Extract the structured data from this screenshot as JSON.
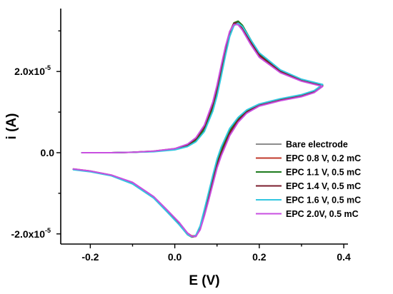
{
  "chart_data": {
    "type": "line",
    "xlabel": "E (V)",
    "ylabel": "i (A)",
    "xlim": [
      -0.27,
      0.41
    ],
    "ylim": [
      -2.25e-05,
      3.55e-05
    ],
    "x_ticks": [
      {
        "value": -0.2,
        "label": "-0.2"
      },
      {
        "value": 0.0,
        "label": "0.0"
      },
      {
        "value": 0.2,
        "label": "0.2"
      },
      {
        "value": 0.4,
        "label": "0.4"
      }
    ],
    "y_ticks": [
      {
        "value": -2e-05,
        "label": "-2.0x10",
        "exp": "-5"
      },
      {
        "value": 0.0,
        "label": "0.0",
        "exp": ""
      },
      {
        "value": 2e-05,
        "label": "2.0x10",
        "exp": "-5"
      }
    ],
    "legend_position": "bottom-right",
    "series": [
      {
        "name": "Bare electrode",
        "color": "#8c8c8c",
        "forward": [
          [
            -0.22,
            0.0
          ],
          [
            -0.15,
            0.0
          ],
          [
            -0.1,
            1e-07
          ],
          [
            -0.05,
            3e-07
          ],
          [
            0.0,
            8e-07
          ],
          [
            0.03,
            1.8e-06
          ],
          [
            0.05,
            3.2e-06
          ],
          [
            0.07,
            6e-06
          ],
          [
            0.09,
            1.15e-05
          ],
          [
            0.1,
            1.55e-05
          ],
          [
            0.11,
            2.05e-05
          ],
          [
            0.12,
            2.55e-05
          ],
          [
            0.13,
            2.95e-05
          ],
          [
            0.14,
            3.16e-05
          ],
          [
            0.15,
            3.18e-05
          ],
          [
            0.16,
            3.08e-05
          ],
          [
            0.18,
            2.72e-05
          ],
          [
            0.2,
            2.4e-05
          ],
          [
            0.25,
            2e-05
          ],
          [
            0.3,
            1.78e-05
          ],
          [
            0.35,
            1.65e-05
          ]
        ],
        "reverse": [
          [
            0.35,
            1.65e-05
          ],
          [
            0.33,
            1.5e-05
          ],
          [
            0.3,
            1.4e-05
          ],
          [
            0.25,
            1.3e-05
          ],
          [
            0.2,
            1.17e-05
          ],
          [
            0.17,
            1e-05
          ],
          [
            0.15,
            8e-06
          ],
          [
            0.13,
            5e-06
          ],
          [
            0.11,
            0.0
          ],
          [
            0.1,
            -3e-06
          ],
          [
            0.09,
            -7e-06
          ],
          [
            0.08,
            -1.1e-05
          ],
          [
            0.07,
            -1.5e-05
          ],
          [
            0.06,
            -1.85e-05
          ],
          [
            0.05,
            -2.04e-05
          ],
          [
            0.04,
            -2.06e-05
          ],
          [
            0.03,
            -2e-05
          ],
          [
            0.01,
            -1.75e-05
          ],
          [
            -0.02,
            -1.42e-05
          ],
          [
            -0.05,
            -1.1e-05
          ],
          [
            -0.1,
            -7.5e-06
          ],
          [
            -0.15,
            -5.6e-06
          ],
          [
            -0.2,
            -4.6e-06
          ],
          [
            -0.24,
            -4.1e-06
          ]
        ]
      },
      {
        "name": "EPC 0.8 V, 0.2 mC",
        "color": "#c0392b",
        "forward": [
          [
            -0.22,
            0.0
          ],
          [
            -0.15,
            0.0
          ],
          [
            -0.1,
            1e-07
          ],
          [
            -0.05,
            4e-07
          ],
          [
            0.0,
            1e-06
          ],
          [
            0.03,
            2e-06
          ],
          [
            0.05,
            3.6e-06
          ],
          [
            0.07,
            6.6e-06
          ],
          [
            0.09,
            1.22e-05
          ],
          [
            0.1,
            1.63e-05
          ],
          [
            0.11,
            2.12e-05
          ],
          [
            0.12,
            2.6e-05
          ],
          [
            0.13,
            2.98e-05
          ],
          [
            0.14,
            3.17e-05
          ],
          [
            0.15,
            3.17e-05
          ],
          [
            0.16,
            3.04e-05
          ],
          [
            0.18,
            2.67e-05
          ],
          [
            0.2,
            2.36e-05
          ],
          [
            0.25,
            1.98e-05
          ],
          [
            0.3,
            1.77e-05
          ],
          [
            0.35,
            1.64e-05
          ]
        ],
        "reverse": [
          [
            0.35,
            1.64e-05
          ],
          [
            0.33,
            1.49e-05
          ],
          [
            0.3,
            1.39e-05
          ],
          [
            0.25,
            1.29e-05
          ],
          [
            0.2,
            1.16e-05
          ],
          [
            0.17,
            9.8e-06
          ],
          [
            0.15,
            7.6e-06
          ],
          [
            0.13,
            4.4e-06
          ],
          [
            0.11,
            -6e-07
          ],
          [
            0.1,
            -3.6e-06
          ],
          [
            0.09,
            -7.6e-06
          ],
          [
            0.08,
            -1.16e-05
          ],
          [
            0.07,
            -1.54e-05
          ],
          [
            0.06,
            -1.88e-05
          ],
          [
            0.05,
            -2.04e-05
          ],
          [
            0.04,
            -2.05e-05
          ],
          [
            0.03,
            -1.98e-05
          ],
          [
            0.01,
            -1.72e-05
          ],
          [
            -0.02,
            -1.4e-05
          ],
          [
            -0.05,
            -1.09e-05
          ],
          [
            -0.1,
            -7.4e-06
          ],
          [
            -0.15,
            -5.5e-06
          ],
          [
            -0.2,
            -4.5e-06
          ],
          [
            -0.24,
            -4e-06
          ]
        ]
      },
      {
        "name": "EPC 1.1 V, 0.5 mC",
        "color": "#1e7b1e",
        "forward": [
          [
            -0.22,
            0.0
          ],
          [
            -0.15,
            0.0
          ],
          [
            -0.1,
            1e-07
          ],
          [
            -0.05,
            3e-07
          ],
          [
            0.0,
            8e-07
          ],
          [
            0.03,
            1.7e-06
          ],
          [
            0.05,
            3e-06
          ],
          [
            0.07,
            5.7e-06
          ],
          [
            0.09,
            1.1e-05
          ],
          [
            0.1,
            1.5e-05
          ],
          [
            0.11,
            2e-05
          ],
          [
            0.12,
            2.52e-05
          ],
          [
            0.13,
            2.96e-05
          ],
          [
            0.14,
            3.2e-05
          ],
          [
            0.15,
            3.24e-05
          ],
          [
            0.16,
            3.14e-05
          ],
          [
            0.18,
            2.78e-05
          ],
          [
            0.2,
            2.44e-05
          ],
          [
            0.25,
            2.02e-05
          ],
          [
            0.3,
            1.79e-05
          ],
          [
            0.35,
            1.66e-05
          ]
        ],
        "reverse": [
          [
            0.35,
            1.66e-05
          ],
          [
            0.33,
            1.51e-05
          ],
          [
            0.3,
            1.41e-05
          ],
          [
            0.25,
            1.31e-05
          ],
          [
            0.2,
            1.18e-05
          ],
          [
            0.17,
            1.02e-05
          ],
          [
            0.15,
            8.3e-06
          ],
          [
            0.13,
            5.4e-06
          ],
          [
            0.11,
            6e-07
          ],
          [
            0.1,
            -2.5e-06
          ],
          [
            0.09,
            -6.5e-06
          ],
          [
            0.08,
            -1.06e-05
          ],
          [
            0.07,
            -1.48e-05
          ],
          [
            0.06,
            -1.86e-05
          ],
          [
            0.05,
            -2.06e-05
          ],
          [
            0.04,
            -2.08e-05
          ],
          [
            0.03,
            -2.02e-05
          ],
          [
            0.01,
            -1.76e-05
          ],
          [
            -0.02,
            -1.43e-05
          ],
          [
            -0.05,
            -1.11e-05
          ],
          [
            -0.1,
            -7.6e-06
          ],
          [
            -0.15,
            -5.6e-06
          ],
          [
            -0.2,
            -4.6e-06
          ],
          [
            -0.24,
            -4.1e-06
          ]
        ]
      },
      {
        "name": "EPC 1.4 V, 0.5 mC",
        "color": "#7b1e2e",
        "forward": [
          [
            -0.22,
            0.0
          ],
          [
            -0.15,
            0.0
          ],
          [
            -0.1,
            1e-07
          ],
          [
            -0.05,
            3.5e-07
          ],
          [
            0.0,
            9e-07
          ],
          [
            0.03,
            1.9e-06
          ],
          [
            0.05,
            3.4e-06
          ],
          [
            0.07,
            6.3e-06
          ],
          [
            0.09,
            1.18e-05
          ],
          [
            0.1,
            1.58e-05
          ],
          [
            0.11,
            2.08e-05
          ],
          [
            0.12,
            2.58e-05
          ],
          [
            0.13,
            2.98e-05
          ],
          [
            0.14,
            3.19e-05
          ],
          [
            0.15,
            3.2e-05
          ],
          [
            0.16,
            3.09e-05
          ],
          [
            0.18,
            2.72e-05
          ],
          [
            0.2,
            2.4e-05
          ],
          [
            0.25,
            2e-05
          ],
          [
            0.3,
            1.78e-05
          ],
          [
            0.35,
            1.65e-05
          ]
        ],
        "reverse": [
          [
            0.35,
            1.65e-05
          ],
          [
            0.33,
            1.5e-05
          ],
          [
            0.3,
            1.4e-05
          ],
          [
            0.25,
            1.3e-05
          ],
          [
            0.2,
            1.17e-05
          ],
          [
            0.17,
            1e-05
          ],
          [
            0.15,
            8e-06
          ],
          [
            0.13,
            4.9e-06
          ],
          [
            0.11,
            -1e-07
          ],
          [
            0.1,
            -3.1e-06
          ],
          [
            0.09,
            -7.1e-06
          ],
          [
            0.08,
            -1.11e-05
          ],
          [
            0.07,
            -1.51e-05
          ],
          [
            0.06,
            -1.87e-05
          ],
          [
            0.05,
            -2.06e-05
          ],
          [
            0.04,
            -2.07e-05
          ],
          [
            0.03,
            -2e-05
          ],
          [
            0.01,
            -1.74e-05
          ],
          [
            -0.02,
            -1.41e-05
          ],
          [
            -0.05,
            -1.1e-05
          ],
          [
            -0.1,
            -7.5e-06
          ],
          [
            -0.15,
            -5.6e-06
          ],
          [
            -0.2,
            -4.6e-06
          ],
          [
            -0.24,
            -4.1e-06
          ]
        ]
      },
      {
        "name": "EPC 1.6 V, 0.5 mC",
        "color": "#33c6e0",
        "forward": [
          [
            -0.22,
            0.0
          ],
          [
            -0.15,
            0.0
          ],
          [
            -0.1,
            1e-07
          ],
          [
            -0.05,
            2.5e-07
          ],
          [
            0.0,
            7e-07
          ],
          [
            0.03,
            1.5e-06
          ],
          [
            0.05,
            2.7e-06
          ],
          [
            0.07,
            5.2e-06
          ],
          [
            0.09,
            1.02e-05
          ],
          [
            0.1,
            1.4e-05
          ],
          [
            0.11,
            1.88e-05
          ],
          [
            0.12,
            2.4e-05
          ],
          [
            0.13,
            2.86e-05
          ],
          [
            0.14,
            3.13e-05
          ],
          [
            0.15,
            3.19e-05
          ],
          [
            0.16,
            3.11e-05
          ],
          [
            0.18,
            2.78e-05
          ],
          [
            0.2,
            2.46e-05
          ],
          [
            0.25,
            2.04e-05
          ],
          [
            0.3,
            1.81e-05
          ],
          [
            0.35,
            1.68e-05
          ]
        ],
        "reverse": [
          [
            0.35,
            1.68e-05
          ],
          [
            0.33,
            1.53e-05
          ],
          [
            0.3,
            1.43e-05
          ],
          [
            0.25,
            1.33e-05
          ],
          [
            0.2,
            1.2e-05
          ],
          [
            0.17,
            1.05e-05
          ],
          [
            0.15,
            8.7e-06
          ],
          [
            0.13,
            6e-06
          ],
          [
            0.11,
            1.4e-06
          ],
          [
            0.1,
            -1.6e-06
          ],
          [
            0.09,
            -5.6e-06
          ],
          [
            0.08,
            -9.8e-06
          ],
          [
            0.07,
            -1.4e-05
          ],
          [
            0.06,
            -1.8e-05
          ],
          [
            0.05,
            -2.03e-05
          ],
          [
            0.04,
            -2.07e-05
          ],
          [
            0.03,
            -2.02e-05
          ],
          [
            0.01,
            -1.77e-05
          ],
          [
            -0.02,
            -1.44e-05
          ],
          [
            -0.05,
            -1.12e-05
          ],
          [
            -0.1,
            -7.7e-06
          ],
          [
            -0.15,
            -5.7e-06
          ],
          [
            -0.2,
            -4.7e-06
          ],
          [
            -0.24,
            -4.2e-06
          ]
        ]
      },
      {
        "name": "EPC  2.0V, 0.5 mC",
        "color": "#c84fe0",
        "forward": [
          [
            -0.22,
            0.0
          ],
          [
            -0.15,
            0.0
          ],
          [
            -0.1,
            1e-07
          ],
          [
            -0.05,
            4e-07
          ],
          [
            0.0,
            1e-06
          ],
          [
            0.03,
            2.1e-06
          ],
          [
            0.05,
            3.7e-06
          ],
          [
            0.07,
            6.8e-06
          ],
          [
            0.09,
            1.25e-05
          ],
          [
            0.1,
            1.66e-05
          ],
          [
            0.11,
            2.15e-05
          ],
          [
            0.12,
            2.62e-05
          ],
          [
            0.13,
            2.99e-05
          ],
          [
            0.14,
            3.16e-05
          ],
          [
            0.15,
            3.15e-05
          ],
          [
            0.16,
            3.02e-05
          ],
          [
            0.18,
            2.66e-05
          ],
          [
            0.2,
            2.35e-05
          ],
          [
            0.25,
            1.97e-05
          ],
          [
            0.3,
            1.76e-05
          ],
          [
            0.35,
            1.63e-05
          ]
        ],
        "reverse": [
          [
            0.35,
            1.63e-05
          ],
          [
            0.33,
            1.48e-05
          ],
          [
            0.3,
            1.38e-05
          ],
          [
            0.25,
            1.28e-05
          ],
          [
            0.2,
            1.15e-05
          ],
          [
            0.17,
            9.7e-06
          ],
          [
            0.15,
            7.5e-06
          ],
          [
            0.13,
            4.2e-06
          ],
          [
            0.11,
            -8e-07
          ],
          [
            0.1,
            -3.8e-06
          ],
          [
            0.09,
            -7.8e-06
          ],
          [
            0.08,
            -1.18e-05
          ],
          [
            0.07,
            -1.56e-05
          ],
          [
            0.06,
            -1.9e-05
          ],
          [
            0.05,
            -2.06e-05
          ],
          [
            0.04,
            -2.06e-05
          ],
          [
            0.03,
            -1.98e-05
          ],
          [
            0.01,
            -1.71e-05
          ],
          [
            -0.02,
            -1.39e-05
          ],
          [
            -0.05,
            -1.08e-05
          ],
          [
            -0.1,
            -7.3e-06
          ],
          [
            -0.15,
            -5.5e-06
          ],
          [
            -0.2,
            -4.5e-06
          ],
          [
            -0.24,
            -4e-06
          ]
        ]
      }
    ]
  }
}
